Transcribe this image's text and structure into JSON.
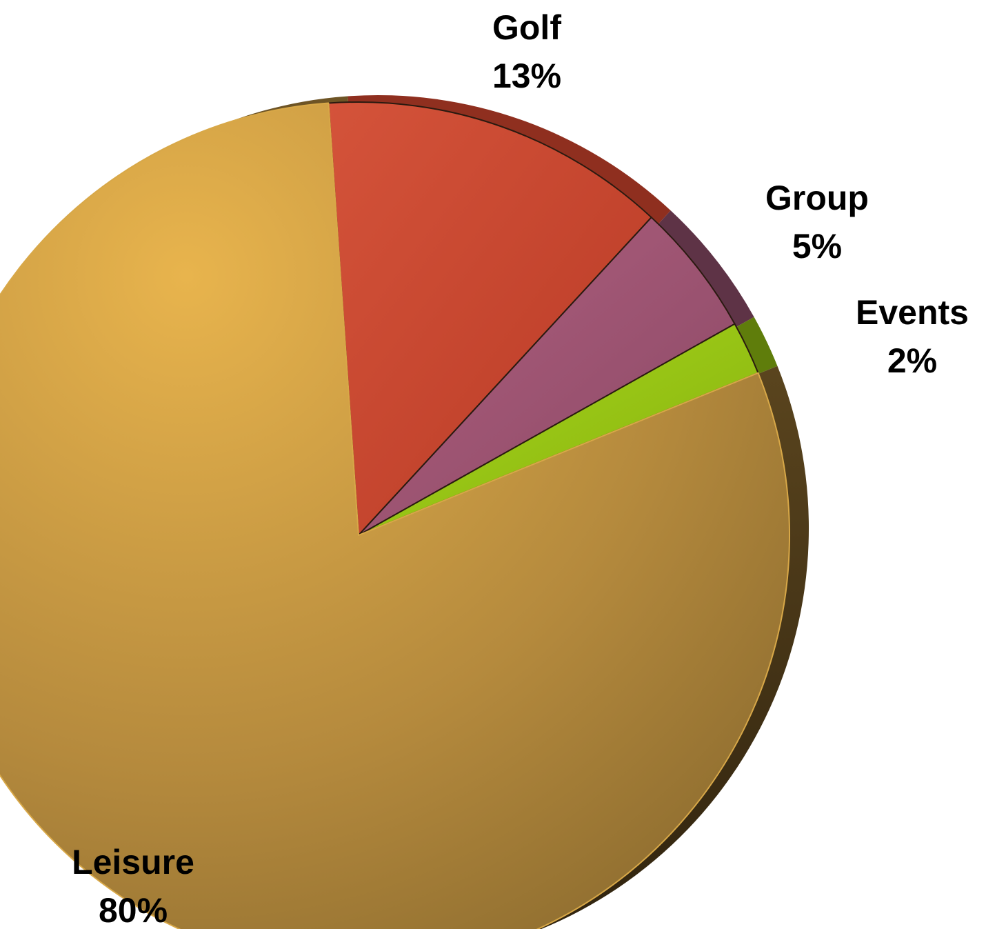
{
  "chart_data": {
    "type": "pie",
    "slices": [
      {
        "name": "Golf",
        "value": 13,
        "label": "13%",
        "color": "#c7432c",
        "side_color": "#8f2f1f"
      },
      {
        "name": "Group",
        "value": 5,
        "label": "5%",
        "color": "#93506e",
        "side_color": "#5e3346"
      },
      {
        "name": "Events",
        "value": 2,
        "label": "2%",
        "color": "#93c012",
        "side_color": "#5f7d0b"
      },
      {
        "name": "Leisure",
        "value": 80,
        "label": "80%",
        "color": "#c79a45",
        "side_color": "#5a4520"
      }
    ],
    "start_angle_deg": -4,
    "direction": "clockwise",
    "style": "3d-tilted"
  }
}
